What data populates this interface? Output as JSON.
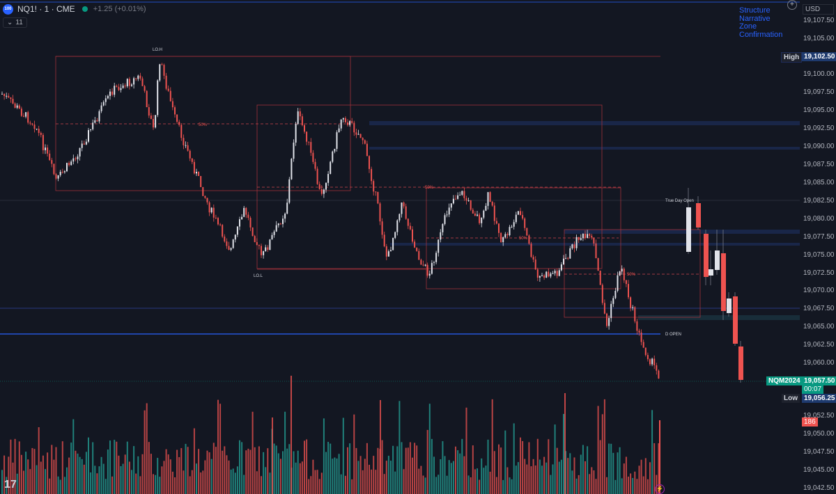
{
  "header": {
    "symbol_badge": "100",
    "symbol": "NQ1! · 1 · CME",
    "change": "+1.25 (+0.01%)",
    "indicator_count": "11"
  },
  "legend": [
    "Structure",
    "Narrative",
    "Zone",
    "Confirmation"
  ],
  "axis": {
    "currency": "USD",
    "ticks": [
      "19,107.50",
      "19,105.00",
      "19,100.00",
      "19,097.50",
      "19,095.00",
      "19,092.50",
      "19,090.00",
      "19,087.50",
      "19,085.00",
      "19,082.50",
      "19,080.00",
      "19,077.50",
      "19,075.00",
      "19,072.50",
      "19,070.00",
      "19,067.50",
      "19,065.00",
      "19,062.50",
      "19,060.00",
      "19,052.50",
      "19,050.00",
      "19,047.50",
      "19,045.00",
      "19,042.50"
    ],
    "high_label": "High",
    "high_value": "19,102.50",
    "contract_label": "NQM2024",
    "last_price": "19,057.50",
    "countdown": "00:07",
    "low_label": "Low",
    "low_value": "19,056.25",
    "volume_value": "186"
  },
  "annotations": {
    "lo_h": "LO.H",
    "lo_l": "LO.L",
    "fifty": "50%",
    "true_day_open": "True Day Open",
    "d_open": "D OPEN"
  },
  "colors": {
    "bull": "#e1e3ea",
    "bear": "#ef5350",
    "vol_bull": "#26a69a",
    "vol_bear": "#ef5350",
    "box": "#a0313a",
    "level_blue": "#2962ff",
    "background": "#131722"
  },
  "icons": {
    "logo": "tradingview-logo-icon",
    "plus": "plus-circle-icon",
    "bolt": "bolt-icon"
  }
}
